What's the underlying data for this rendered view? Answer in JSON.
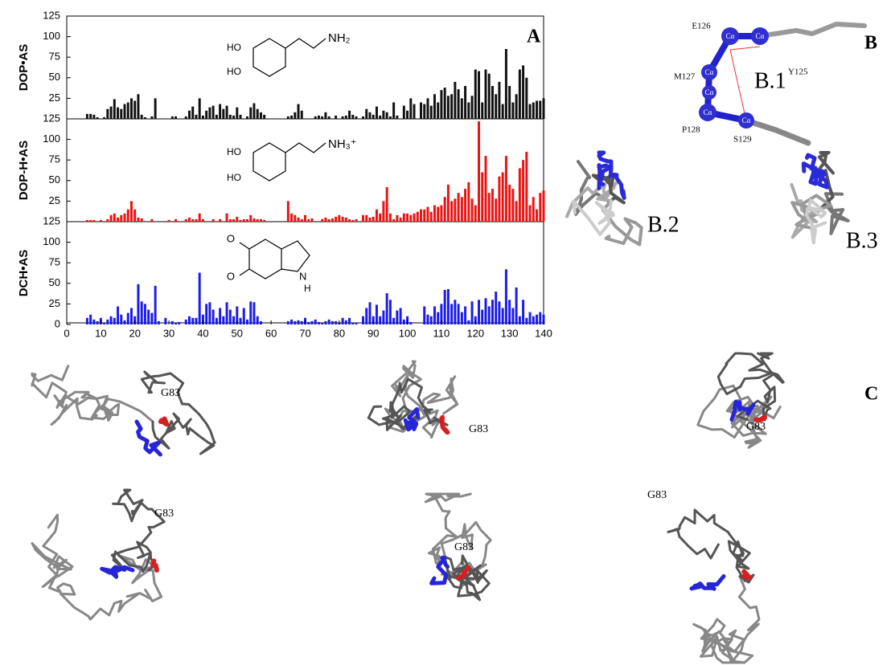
{
  "chart_data": [
    {
      "type": "bar",
      "y_label": "DOP•AS",
      "color": "#111111",
      "xlim": [
        0,
        140
      ],
      "ylim": [
        0,
        125
      ],
      "yticks": [
        25,
        50,
        75,
        100,
        125
      ],
      "x": [
        5,
        6,
        7,
        8,
        9,
        10,
        11,
        12,
        13,
        14,
        15,
        16,
        17,
        18,
        19,
        20,
        21,
        22,
        23,
        24,
        25,
        26,
        27,
        28,
        29,
        30,
        31,
        32,
        33,
        34,
        35,
        36,
        37,
        38,
        39,
        40,
        41,
        42,
        43,
        44,
        45,
        46,
        47,
        48,
        49,
        50,
        51,
        52,
        53,
        54,
        55,
        56,
        57,
        58,
        59,
        60,
        61,
        62,
        63,
        64,
        65,
        66,
        67,
        68,
        69,
        70,
        71,
        72,
        73,
        74,
        75,
        76,
        77,
        78,
        79,
        80,
        81,
        82,
        83,
        84,
        85,
        86,
        87,
        88,
        89,
        90,
        91,
        92,
        93,
        94,
        95,
        96,
        97,
        98,
        99,
        100,
        101,
        102,
        103,
        104,
        105,
        106,
        107,
        108,
        109,
        110,
        111,
        112,
        113,
        114,
        115,
        116,
        117,
        118,
        119,
        120,
        121,
        122,
        123,
        124,
        125,
        126,
        127,
        128,
        129,
        130,
        131,
        132,
        133,
        134,
        135,
        136,
        137,
        138,
        139,
        140
      ],
      "values": [
        null,
        6,
        6,
        5,
        2,
        null,
        2,
        12,
        15,
        24,
        14,
        12,
        18,
        20,
        25,
        22,
        30,
        5,
        2,
        null,
        3,
        25,
        null,
        null,
        null,
        null,
        3,
        3,
        null,
        null,
        3,
        10,
        15,
        5,
        25,
        4,
        10,
        14,
        16,
        5,
        18,
        12,
        16,
        5,
        4,
        14,
        5,
        null,
        3,
        14,
        19,
        12,
        8,
        5,
        null,
        null,
        null,
        null,
        null,
        null,
        3,
        4,
        8,
        18,
        10,
        null,
        null,
        null,
        3,
        4,
        3,
        8,
        3,
        null,
        4,
        null,
        3,
        4,
        10,
        5,
        3,
        null,
        3,
        12,
        8,
        5,
        15,
        4,
        10,
        8,
        3,
        20,
        4,
        null,
        16,
        10,
        25,
        18,
        null,
        20,
        18,
        25,
        16,
        30,
        20,
        35,
        38,
        28,
        30,
        45,
        36,
        25,
        40,
        20,
        28,
        60,
        58,
        20,
        60,
        55,
        40,
        30,
        45,
        18,
        85,
        40,
        20,
        30,
        60,
        65,
        50,
        18,
        20,
        22,
        22,
        25
      ]
    },
    {
      "type": "bar",
      "y_label": "DOP-H•AS",
      "color": "#ee1111",
      "xlim": [
        0,
        140
      ],
      "ylim": [
        0,
        125
      ],
      "yticks": [
        25,
        50,
        75,
        100,
        125
      ],
      "x": [
        5,
        6,
        7,
        8,
        9,
        10,
        11,
        12,
        13,
        14,
        15,
        16,
        17,
        18,
        19,
        20,
        21,
        22,
        23,
        24,
        25,
        26,
        27,
        28,
        29,
        30,
        31,
        32,
        33,
        34,
        35,
        36,
        37,
        38,
        39,
        40,
        41,
        42,
        43,
        44,
        45,
        46,
        47,
        48,
        49,
        50,
        51,
        52,
        53,
        54,
        55,
        56,
        57,
        58,
        59,
        60,
        61,
        62,
        63,
        64,
        65,
        66,
        67,
        68,
        69,
        70,
        71,
        72,
        73,
        74,
        75,
        76,
        77,
        78,
        79,
        80,
        81,
        82,
        83,
        84,
        85,
        86,
        87,
        88,
        89,
        90,
        91,
        92,
        93,
        94,
        95,
        96,
        97,
        98,
        99,
        100,
        101,
        102,
        103,
        104,
        105,
        106,
        107,
        108,
        109,
        110,
        111,
        112,
        113,
        114,
        115,
        116,
        117,
        118,
        119,
        120,
        121,
        122,
        123,
        124,
        125,
        126,
        127,
        128,
        129,
        130,
        131,
        132,
        133,
        134,
        135,
        136,
        137,
        138,
        139,
        140
      ],
      "values": [
        null,
        2,
        2,
        2,
        null,
        2,
        null,
        3,
        8,
        10,
        5,
        8,
        10,
        15,
        25,
        15,
        5,
        4,
        null,
        null,
        3,
        null,
        null,
        null,
        null,
        2,
        null,
        3,
        null,
        null,
        3,
        5,
        3,
        3,
        10,
        3,
        null,
        null,
        3,
        null,
        3,
        null,
        10,
        3,
        3,
        6,
        2,
        3,
        3,
        8,
        4,
        3,
        3,
        2,
        null,
        null,
        null,
        null,
        null,
        null,
        25,
        10,
        8,
        5,
        3,
        8,
        3,
        4,
        null,
        null,
        3,
        5,
        3,
        4,
        6,
        8,
        6,
        5,
        3,
        2,
        3,
        null,
        8,
        8,
        5,
        6,
        15,
        10,
        25,
        42,
        10,
        3,
        8,
        5,
        10,
        10,
        8,
        10,
        12,
        15,
        15,
        18,
        12,
        20,
        18,
        20,
        30,
        45,
        25,
        28,
        35,
        30,
        40,
        48,
        28,
        20,
        122,
        60,
        80,
        35,
        40,
        28,
        55,
        60,
        80,
        45,
        40,
        25,
        65,
        75,
        85,
        20,
        30,
        15,
        35,
        38
      ]
    },
    {
      "type": "bar",
      "y_label": "DCH•AS",
      "color": "#1a1aee",
      "xlim": [
        0,
        140
      ],
      "ylim": [
        0,
        125
      ],
      "yticks": [
        0,
        25,
        50,
        75,
        100,
        125
      ],
      "xticks": [
        0,
        10,
        20,
        30,
        40,
        50,
        60,
        70,
        80,
        90,
        100,
        110,
        120,
        130,
        140
      ],
      "x": [
        5,
        6,
        7,
        8,
        9,
        10,
        11,
        12,
        13,
        14,
        15,
        16,
        17,
        18,
        19,
        20,
        21,
        22,
        23,
        24,
        25,
        26,
        27,
        28,
        29,
        30,
        31,
        32,
        33,
        34,
        35,
        36,
        37,
        38,
        39,
        40,
        41,
        42,
        43,
        44,
        45,
        46,
        47,
        48,
        49,
        50,
        51,
        52,
        53,
        54,
        55,
        56,
        57,
        58,
        59,
        60,
        61,
        62,
        63,
        64,
        65,
        66,
        67,
        68,
        69,
        70,
        71,
        72,
        73,
        74,
        75,
        76,
        77,
        78,
        79,
        80,
        81,
        82,
        83,
        84,
        85,
        86,
        87,
        88,
        89,
        90,
        91,
        92,
        93,
        94,
        95,
        96,
        97,
        98,
        99,
        100,
        101,
        102,
        103,
        104,
        105,
        106,
        107,
        108,
        109,
        110,
        111,
        112,
        113,
        114,
        115,
        116,
        117,
        118,
        119,
        120,
        121,
        122,
        123,
        124,
        125,
        126,
        127,
        128,
        129,
        130,
        131,
        132,
        133,
        134,
        135,
        136,
        137,
        138,
        139,
        140
      ],
      "values": [
        null,
        8,
        12,
        6,
        4,
        8,
        2,
        6,
        10,
        8,
        22,
        12,
        5,
        14,
        20,
        10,
        49,
        28,
        25,
        18,
        14,
        47,
        4,
        null,
        8,
        null,
        4,
        2,
        3,
        null,
        6,
        10,
        8,
        8,
        63,
        12,
        25,
        27,
        18,
        8,
        20,
        10,
        27,
        18,
        10,
        22,
        8,
        20,
        6,
        28,
        27,
        10,
        4,
        null,
        null,
        null,
        null,
        null,
        null,
        null,
        4,
        6,
        4,
        5,
        4,
        8,
        3,
        4,
        6,
        3,
        2,
        4,
        6,
        4,
        4,
        2,
        8,
        5,
        8,
        2,
        2,
        null,
        10,
        20,
        27,
        10,
        24,
        10,
        17,
        38,
        30,
        8,
        17,
        20,
        6,
        10,
        3,
        null,
        null,
        null,
        22,
        12,
        10,
        22,
        15,
        25,
        42,
        43,
        25,
        30,
        25,
        15,
        22,
        5,
        28,
        10,
        30,
        18,
        32,
        22,
        30,
        40,
        28,
        20,
        67,
        30,
        20,
        45,
        10,
        30,
        8,
        15,
        10,
        12,
        15,
        12
      ]
    }
  ],
  "panels": {
    "a": "A",
    "b": "B",
    "c": "C"
  },
  "molecules": {
    "dop": [
      "HO",
      "HO",
      "NH₂"
    ],
    "doph": [
      "HO",
      "HO",
      "NH₃⁺"
    ],
    "dch": [
      "O",
      "O",
      "N",
      "H"
    ]
  },
  "panel_b": {
    "residues": [
      "E126",
      "Y125",
      "M127",
      "P128",
      "S129"
    ],
    "atoms": [
      "Cα",
      "Cα",
      "Cα",
      "Cα",
      "Cα",
      "Cα"
    ],
    "subpanels": [
      "B.1",
      "B.2",
      "B.3"
    ]
  },
  "panel_c": {
    "labels": [
      "G83",
      "G83",
      "G83",
      "G83",
      "G83",
      "G83"
    ]
  }
}
